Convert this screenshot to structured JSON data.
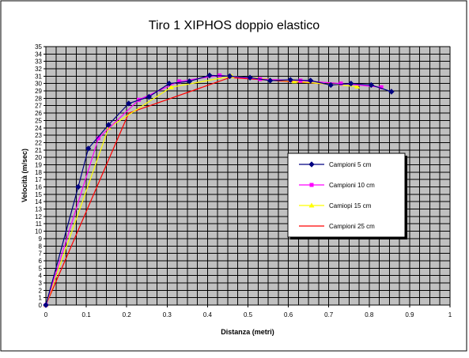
{
  "chart_data": {
    "type": "line",
    "title": "Tiro 1 XIPHOS doppio elastico",
    "xlabel": "Distanza (metri)",
    "ylabel": "Velocità (m/sec)",
    "xlim": [
      0,
      1
    ],
    "ylim": [
      0,
      35
    ],
    "x_ticks": [
      0,
      0.1,
      0.2,
      0.3,
      0.4,
      0.5,
      0.6,
      0.7,
      0.8,
      0.9,
      1
    ],
    "x_tick_labels": [
      "0",
      "0.1",
      "0.2",
      "0.3",
      "0.4",
      "0.5",
      "0.6",
      "0.7",
      "0.8",
      "0.9",
      "1"
    ],
    "y_ticks": [
      0,
      1,
      2,
      3,
      4,
      5,
      6,
      7,
      8,
      9,
      10,
      11,
      12,
      13,
      14,
      15,
      16,
      17,
      18,
      19,
      20,
      21,
      22,
      23,
      24,
      25,
      26,
      27,
      28,
      29,
      30,
      31,
      32,
      33,
      34,
      35
    ],
    "x_minor_step": 0.025,
    "grid": true,
    "plot_background": "#c0c0c0",
    "legend_position": "right",
    "series": [
      {
        "name": "Campioni 5 cm",
        "color": "#000080",
        "marker": "diamond",
        "x": [
          0,
          0.08,
          0.105,
          0.155,
          0.205,
          0.255,
          0.305,
          0.355,
          0.405,
          0.455,
          0.505,
          0.555,
          0.605,
          0.655,
          0.705,
          0.755,
          0.805,
          0.855
        ],
        "y": [
          0,
          16,
          21.2,
          24.4,
          27.3,
          28.2,
          30,
          30.3,
          31.1,
          31,
          30.8,
          30.4,
          30.5,
          30.4,
          29.8,
          30,
          29.8,
          28.9
        ]
      },
      {
        "name": "Campioni 10 cm",
        "color": "#ff00ff",
        "marker": "square",
        "x": [
          0,
          0.13,
          0.23,
          0.33,
          0.43,
          0.53,
          0.63,
          0.73,
          0.83
        ],
        "y": [
          0,
          22.6,
          27.8,
          30.3,
          31.1,
          30.6,
          30.4,
          30,
          29.5
        ]
      },
      {
        "name": "Camiopi 15 cm",
        "color": "#ffff00",
        "marker": "triangle",
        "x": [
          0,
          0.155,
          0.31,
          0.46,
          0.615,
          0.77
        ],
        "y": [
          0,
          24,
          29.5,
          31,
          30.3,
          29.6
        ]
      },
      {
        "name": "Campioni 25 cm",
        "color": "#ff0000",
        "marker": "none",
        "x": [
          0,
          0.205,
          0.455,
          0.705
        ],
        "y": [
          0,
          26,
          30.8,
          29.9
        ]
      }
    ]
  }
}
